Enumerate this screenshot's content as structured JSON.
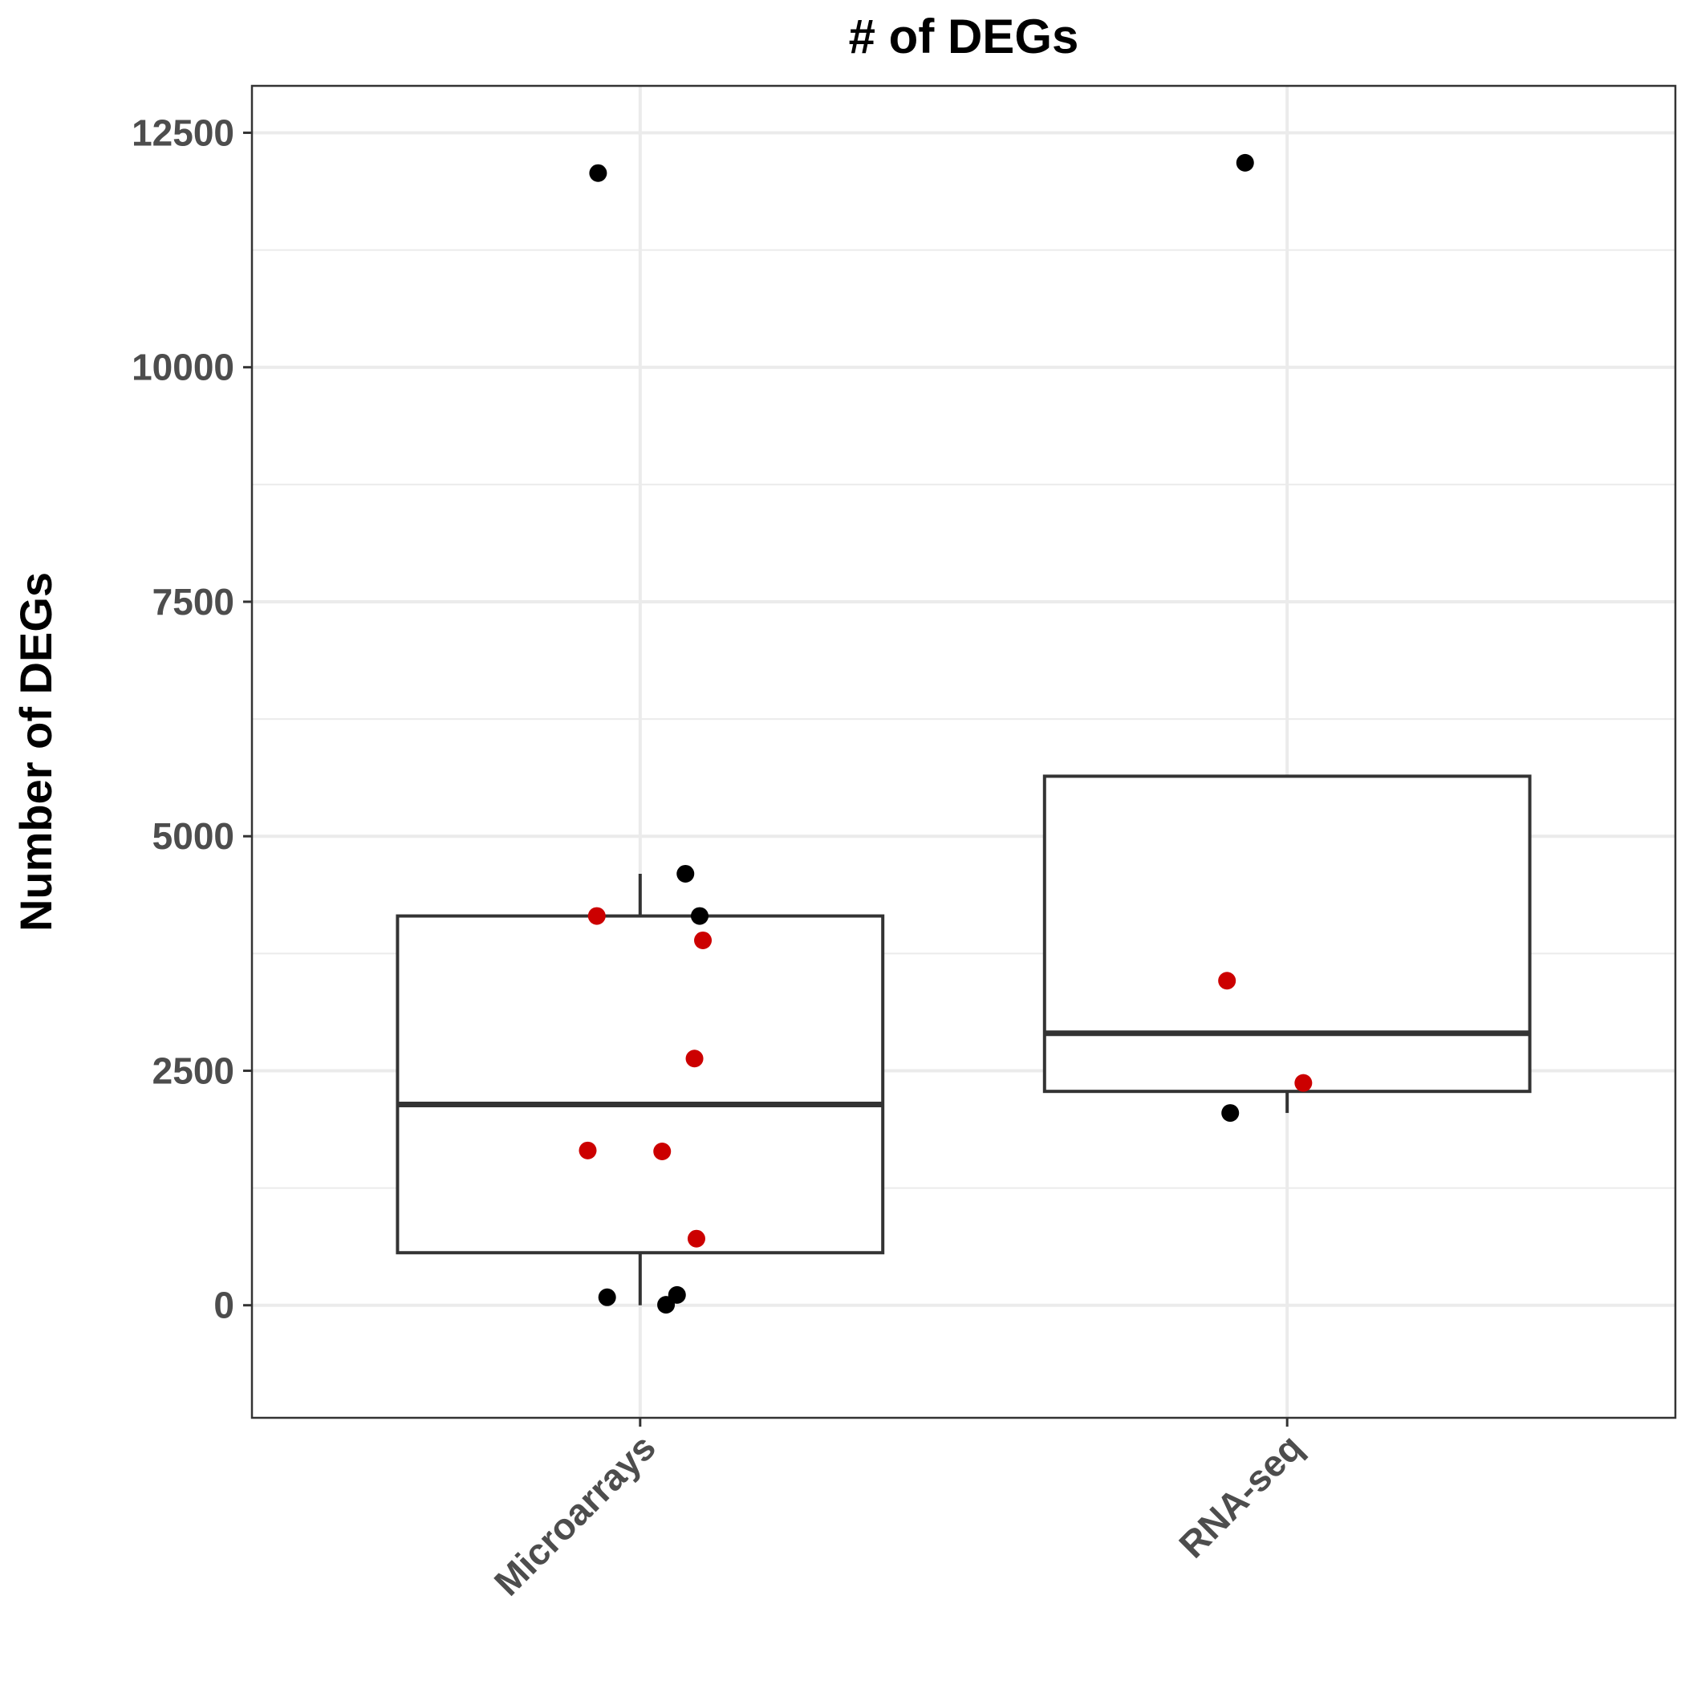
{
  "chart_data": {
    "type": "box",
    "title": "# of DEGs",
    "xlabel": "",
    "ylabel": "Number of DEGs",
    "ylim": [
      -1200,
      13000
    ],
    "yticks": [
      0,
      2500,
      5000,
      7500,
      10000,
      12500
    ],
    "ytick_labels": [
      "0",
      "2500",
      "5000",
      "7500",
      "10000",
      "12500"
    ],
    "categories": [
      "Microarrays",
      "RNA-seq"
    ],
    "grid": true,
    "colors": {
      "point_default": "#000000",
      "point_highlight": "#cc0000",
      "box_stroke": "#333333",
      "grid": "#ebebeb",
      "tick_label": "#4d4d4d"
    },
    "boxes": [
      {
        "category": "Microarrays",
        "whisker_low": 0,
        "q1": 560,
        "median": 2140,
        "q3": 4150,
        "whisker_high": 4600
      },
      {
        "category": "RNA-seq",
        "whisker_low": 2050,
        "q1": 2280,
        "median": 2900,
        "q3": 5640,
        "whisker_high": 5640
      }
    ],
    "points": [
      {
        "category": "Microarrays",
        "jitter": -0.065,
        "y": 12070,
        "highlight": false
      },
      {
        "category": "Microarrays",
        "jitter": 0.07,
        "y": 4600,
        "highlight": false
      },
      {
        "category": "Microarrays",
        "jitter": 0.092,
        "y": 4150,
        "highlight": false
      },
      {
        "category": "Microarrays",
        "jitter": -0.067,
        "y": 4150,
        "highlight": true
      },
      {
        "category": "Microarrays",
        "jitter": 0.097,
        "y": 3890,
        "highlight": true
      },
      {
        "category": "Microarrays",
        "jitter": 0.084,
        "y": 2630,
        "highlight": true
      },
      {
        "category": "Microarrays",
        "jitter": -0.081,
        "y": 1650,
        "highlight": true
      },
      {
        "category": "Microarrays",
        "jitter": 0.034,
        "y": 1640,
        "highlight": true
      },
      {
        "category": "Microarrays",
        "jitter": 0.087,
        "y": 710,
        "highlight": true
      },
      {
        "category": "Microarrays",
        "jitter": -0.051,
        "y": 85,
        "highlight": false
      },
      {
        "category": "Microarrays",
        "jitter": 0.057,
        "y": 110,
        "highlight": false
      },
      {
        "category": "Microarrays",
        "jitter": 0.04,
        "y": 5,
        "highlight": false
      },
      {
        "category": "RNA-seq",
        "jitter": -0.065,
        "y": 12180,
        "highlight": false
      },
      {
        "category": "RNA-seq",
        "jitter": -0.093,
        "y": 3460,
        "highlight": true
      },
      {
        "category": "RNA-seq",
        "jitter": 0.025,
        "y": 2370,
        "highlight": true
      },
      {
        "category": "RNA-seq",
        "jitter": -0.088,
        "y": 2050,
        "highlight": false
      }
    ]
  }
}
